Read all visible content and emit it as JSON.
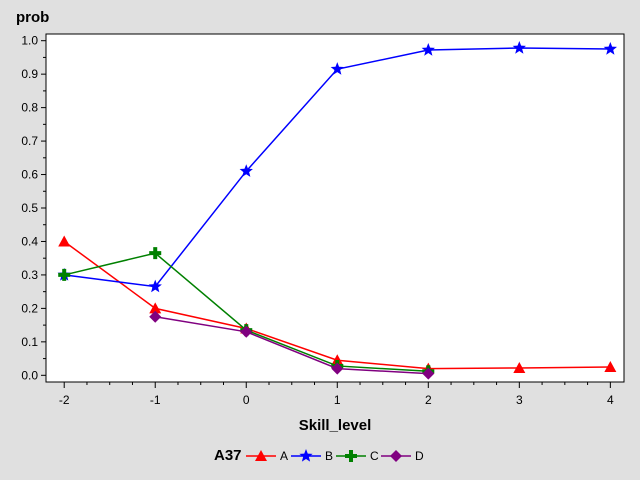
{
  "chart_data": {
    "type": "line",
    "xlabel": "Skill_level",
    "ylabel": "prob",
    "xlim": [
      -2,
      4
    ],
    "ylim": [
      0,
      1
    ],
    "x_ticks": [
      "-2",
      "-1",
      "0",
      "1",
      "2",
      "3",
      "4"
    ],
    "y_ticks": [
      "0.0",
      "0.1",
      "0.2",
      "0.3",
      "0.4",
      "0.5",
      "0.6",
      "0.7",
      "0.8",
      "0.9",
      "1.0"
    ],
    "grid": false,
    "legend": {
      "title": "A37",
      "placement": "bottom"
    },
    "series": [
      {
        "name": "A",
        "color": "#ff0000",
        "marker": "triangle",
        "points": [
          [
            -2,
            0.4
          ],
          [
            -1,
            0.2
          ],
          [
            0,
            0.14
          ],
          [
            1,
            0.045
          ],
          [
            2,
            0.02
          ],
          [
            3,
            0.022
          ],
          [
            4,
            0.025
          ]
        ]
      },
      {
        "name": "B",
        "color": "#0000ff",
        "marker": "star",
        "points": [
          [
            -2,
            0.3
          ],
          [
            -1,
            0.265
          ],
          [
            0,
            0.61
          ],
          [
            1,
            0.915
          ],
          [
            2,
            0.972
          ],
          [
            3,
            0.978
          ],
          [
            4,
            0.975
          ]
        ]
      },
      {
        "name": "C",
        "color": "#008000",
        "marker": "plus",
        "points": [
          [
            -2,
            0.3
          ],
          [
            -1,
            0.365
          ],
          [
            0,
            0.135
          ],
          [
            1,
            0.028
          ],
          [
            2,
            0.012
          ]
        ]
      },
      {
        "name": "D",
        "color": "#800080",
        "marker": "diamond",
        "points": [
          [
            -1,
            0.175
          ],
          [
            0,
            0.13
          ],
          [
            1,
            0.02
          ],
          [
            2,
            0.005
          ]
        ]
      }
    ]
  }
}
